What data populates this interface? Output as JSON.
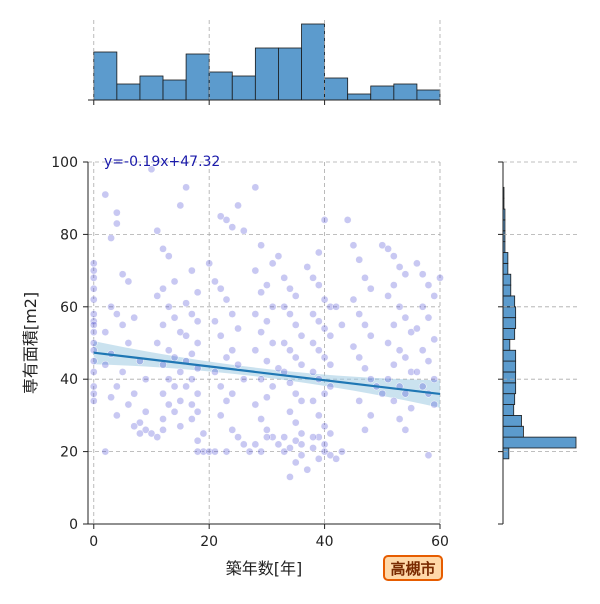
{
  "chart_data": {
    "type": "scatter",
    "xlabel": "築年数[年]",
    "ylabel": "専有面積[m2]",
    "xlim": [
      -1,
      60
    ],
    "ylim": [
      0,
      100
    ],
    "x_ticks": [
      0,
      20,
      40,
      60
    ],
    "y_ticks": [
      0,
      20,
      40,
      60,
      80,
      100
    ],
    "grid": true,
    "regression": {
      "slope": -0.19,
      "intercept": 47.32,
      "label": "y=-0.19x+47.32",
      "color": "#1f77b4"
    },
    "points_color": "#3a3ad0",
    "points": [
      [
        0,
        72
      ],
      [
        0,
        70
      ],
      [
        0,
        68
      ],
      [
        0,
        65
      ],
      [
        0,
        62
      ],
      [
        0,
        58
      ],
      [
        0,
        56
      ],
      [
        0,
        55
      ],
      [
        0,
        53
      ],
      [
        0,
        50
      ],
      [
        0,
        48
      ],
      [
        0,
        45
      ],
      [
        0,
        42
      ],
      [
        0,
        38
      ],
      [
        0,
        36
      ],
      [
        0,
        34
      ],
      [
        2,
        91
      ],
      [
        3,
        79
      ],
      [
        4,
        86
      ],
      [
        4,
        83
      ],
      [
        5,
        69
      ],
      [
        6,
        67
      ],
      [
        3,
        60
      ],
      [
        4,
        58
      ],
      [
        5,
        55
      ],
      [
        7,
        57
      ],
      [
        2,
        53
      ],
      [
        6,
        50
      ],
      [
        3,
        47
      ],
      [
        8,
        45
      ],
      [
        2,
        44
      ],
      [
        5,
        42
      ],
      [
        9,
        40
      ],
      [
        4,
        38
      ],
      [
        7,
        36
      ],
      [
        3,
        35
      ],
      [
        6,
        33
      ],
      [
        9,
        31
      ],
      [
        4,
        30
      ],
      [
        8,
        28
      ],
      [
        7,
        27
      ],
      [
        9,
        26
      ],
      [
        8,
        25
      ],
      [
        10,
        25
      ],
      [
        11,
        24
      ],
      [
        12,
        26
      ],
      [
        2,
        20
      ],
      [
        10,
        98
      ],
      [
        11,
        81
      ],
      [
        12,
        76
      ],
      [
        13,
        74
      ],
      [
        14,
        67
      ],
      [
        12,
        65
      ],
      [
        11,
        63
      ],
      [
        13,
        60
      ],
      [
        14,
        57
      ],
      [
        12,
        55
      ],
      [
        15,
        53
      ],
      [
        11,
        50
      ],
      [
        13,
        48
      ],
      [
        14,
        46
      ],
      [
        12,
        44
      ],
      [
        15,
        42
      ],
      [
        13,
        40
      ],
      [
        14,
        38
      ],
      [
        12,
        36
      ],
      [
        15,
        34
      ],
      [
        13,
        33
      ],
      [
        14,
        31
      ],
      [
        12,
        29
      ],
      [
        15,
        27
      ],
      [
        16,
        93
      ],
      [
        15,
        88
      ],
      [
        17,
        70
      ],
      [
        18,
        64
      ],
      [
        16,
        61
      ],
      [
        17,
        58
      ],
      [
        18,
        56
      ],
      [
        16,
        52
      ],
      [
        18,
        50
      ],
      [
        17,
        47
      ],
      [
        16,
        45
      ],
      [
        18,
        43
      ],
      [
        17,
        40
      ],
      [
        16,
        38
      ],
      [
        18,
        36
      ],
      [
        17,
        33
      ],
      [
        18,
        31
      ],
      [
        17,
        29
      ],
      [
        19,
        25
      ],
      [
        18,
        23
      ],
      [
        19,
        20
      ],
      [
        18,
        20
      ],
      [
        20,
        20
      ],
      [
        21,
        20
      ],
      [
        20,
        72
      ],
      [
        21,
        67
      ],
      [
        22,
        85
      ],
      [
        23,
        84
      ],
      [
        24,
        82
      ],
      [
        25,
        88
      ],
      [
        26,
        81
      ],
      [
        22,
        65
      ],
      [
        23,
        62
      ],
      [
        24,
        58
      ],
      [
        21,
        56
      ],
      [
        25,
        54
      ],
      [
        22,
        52
      ],
      [
        24,
        48
      ],
      [
        23,
        46
      ],
      [
        25,
        44
      ],
      [
        21,
        42
      ],
      [
        26,
        40
      ],
      [
        22,
        38
      ],
      [
        24,
        36
      ],
      [
        23,
        34
      ],
      [
        22,
        30
      ],
      [
        24,
        26
      ],
      [
        25,
        24
      ],
      [
        26,
        22
      ],
      [
        23,
        20
      ],
      [
        27,
        20
      ],
      [
        28,
        93
      ],
      [
        29,
        77
      ],
      [
        28,
        70
      ],
      [
        31,
        72
      ],
      [
        30,
        66
      ],
      [
        29,
        64
      ],
      [
        31,
        60
      ],
      [
        28,
        58
      ],
      [
        30,
        56
      ],
      [
        29,
        53
      ],
      [
        31,
        50
      ],
      [
        28,
        48
      ],
      [
        30,
        45
      ],
      [
        32,
        43
      ],
      [
        29,
        40
      ],
      [
        31,
        38
      ],
      [
        30,
        35
      ],
      [
        28,
        33
      ],
      [
        29,
        29
      ],
      [
        30,
        26
      ],
      [
        31,
        24
      ],
      [
        32,
        22
      ],
      [
        28,
        22
      ],
      [
        33,
        20
      ],
      [
        29,
        20
      ],
      [
        30,
        24
      ],
      [
        32,
        74
      ],
      [
        33,
        68
      ],
      [
        34,
        65
      ],
      [
        35,
        63
      ],
      [
        33,
        60
      ],
      [
        34,
        58
      ],
      [
        35,
        55
      ],
      [
        36,
        52
      ],
      [
        33,
        50
      ],
      [
        34,
        48
      ],
      [
        35,
        46
      ],
      [
        36,
        44
      ],
      [
        33,
        42
      ],
      [
        34,
        39
      ],
      [
        35,
        36
      ],
      [
        36,
        34
      ],
      [
        34,
        31
      ],
      [
        35,
        28
      ],
      [
        36,
        25
      ],
      [
        35,
        23
      ],
      [
        34,
        21
      ],
      [
        36,
        19
      ],
      [
        35,
        17
      ],
      [
        37,
        15
      ],
      [
        34,
        13
      ],
      [
        33,
        24
      ],
      [
        36,
        22
      ],
      [
        37,
        71
      ],
      [
        38,
        68
      ],
      [
        39,
        75
      ],
      [
        40,
        84
      ],
      [
        39,
        66
      ],
      [
        40,
        62
      ],
      [
        41,
        60
      ],
      [
        38,
        58
      ],
      [
        39,
        56
      ],
      [
        40,
        54
      ],
      [
        41,
        52
      ],
      [
        38,
        50
      ],
      [
        39,
        48
      ],
      [
        40,
        46
      ],
      [
        41,
        44
      ],
      [
        38,
        42
      ],
      [
        39,
        40
      ],
      [
        41,
        38
      ],
      [
        40,
        36
      ],
      [
        38,
        34
      ],
      [
        39,
        30
      ],
      [
        40,
        27
      ],
      [
        41,
        25
      ],
      [
        39,
        24
      ],
      [
        40,
        22
      ],
      [
        38,
        21
      ],
      [
        40,
        20
      ],
      [
        41,
        19
      ],
      [
        39,
        18
      ],
      [
        42,
        18
      ],
      [
        43,
        20
      ],
      [
        44,
        84
      ],
      [
        38,
        24
      ],
      [
        42,
        60
      ],
      [
        43,
        55
      ],
      [
        45,
        77
      ],
      [
        46,
        73
      ],
      [
        47,
        68
      ],
      [
        48,
        65
      ],
      [
        45,
        62
      ],
      [
        46,
        58
      ],
      [
        47,
        55
      ],
      [
        48,
        52
      ],
      [
        45,
        49
      ],
      [
        46,
        46
      ],
      [
        47,
        43
      ],
      [
        48,
        40
      ],
      [
        49,
        38
      ],
      [
        50,
        36
      ],
      [
        46,
        34
      ],
      [
        48,
        30
      ],
      [
        47,
        26
      ],
      [
        50,
        77
      ],
      [
        51,
        76
      ],
      [
        52,
        74
      ],
      [
        53,
        71
      ],
      [
        54,
        69
      ],
      [
        52,
        66
      ],
      [
        51,
        63
      ],
      [
        53,
        60
      ],
      [
        54,
        57
      ],
      [
        52,
        55
      ],
      [
        55,
        53
      ],
      [
        51,
        50
      ],
      [
        53,
        48
      ],
      [
        54,
        46
      ],
      [
        52,
        44
      ],
      [
        55,
        42
      ],
      [
        51,
        40
      ],
      [
        53,
        38
      ],
      [
        54,
        36
      ],
      [
        52,
        34
      ],
      [
        55,
        32
      ],
      [
        53,
        29
      ],
      [
        54,
        26
      ],
      [
        56,
        72
      ],
      [
        57,
        69
      ],
      [
        58,
        66
      ],
      [
        59,
        63
      ],
      [
        57,
        60
      ],
      [
        58,
        57
      ],
      [
        56,
        54
      ],
      [
        59,
        51
      ],
      [
        57,
        48
      ],
      [
        58,
        45
      ],
      [
        56,
        42
      ],
      [
        59,
        40
      ],
      [
        57,
        38
      ],
      [
        58,
        36
      ],
      [
        59,
        33
      ],
      [
        58,
        19
      ],
      [
        60,
        68
      ]
    ],
    "top_histogram": {
      "bins": [
        0,
        4,
        8,
        12,
        16,
        20,
        24,
        28,
        32,
        36,
        40,
        44,
        48,
        52,
        56,
        60
      ],
      "counts": [
        24,
        8,
        12,
        10,
        23,
        14,
        12,
        26,
        26,
        38,
        11,
        3,
        7,
        8,
        5
      ]
    },
    "right_histogram": {
      "bins": [
        0,
        3,
        6,
        9,
        12,
        15,
        18,
        21,
        24,
        27,
        30,
        33,
        36,
        39,
        42,
        45,
        48,
        51,
        54,
        57,
        60,
        63,
        66,
        69,
        72,
        75,
        78,
        81,
        84,
        87,
        90,
        93,
        96,
        99
      ],
      "counts": [
        0,
        0,
        0,
        0,
        0,
        0,
        6,
        75,
        21,
        19,
        11,
        12,
        13,
        13,
        13,
        13,
        7,
        12,
        13,
        13,
        12,
        8,
        8,
        5,
        5,
        2,
        2,
        2,
        2,
        1,
        1,
        0,
        0
      ]
    }
  },
  "badge": {
    "label": "高槻市",
    "color": "#e65c00"
  }
}
